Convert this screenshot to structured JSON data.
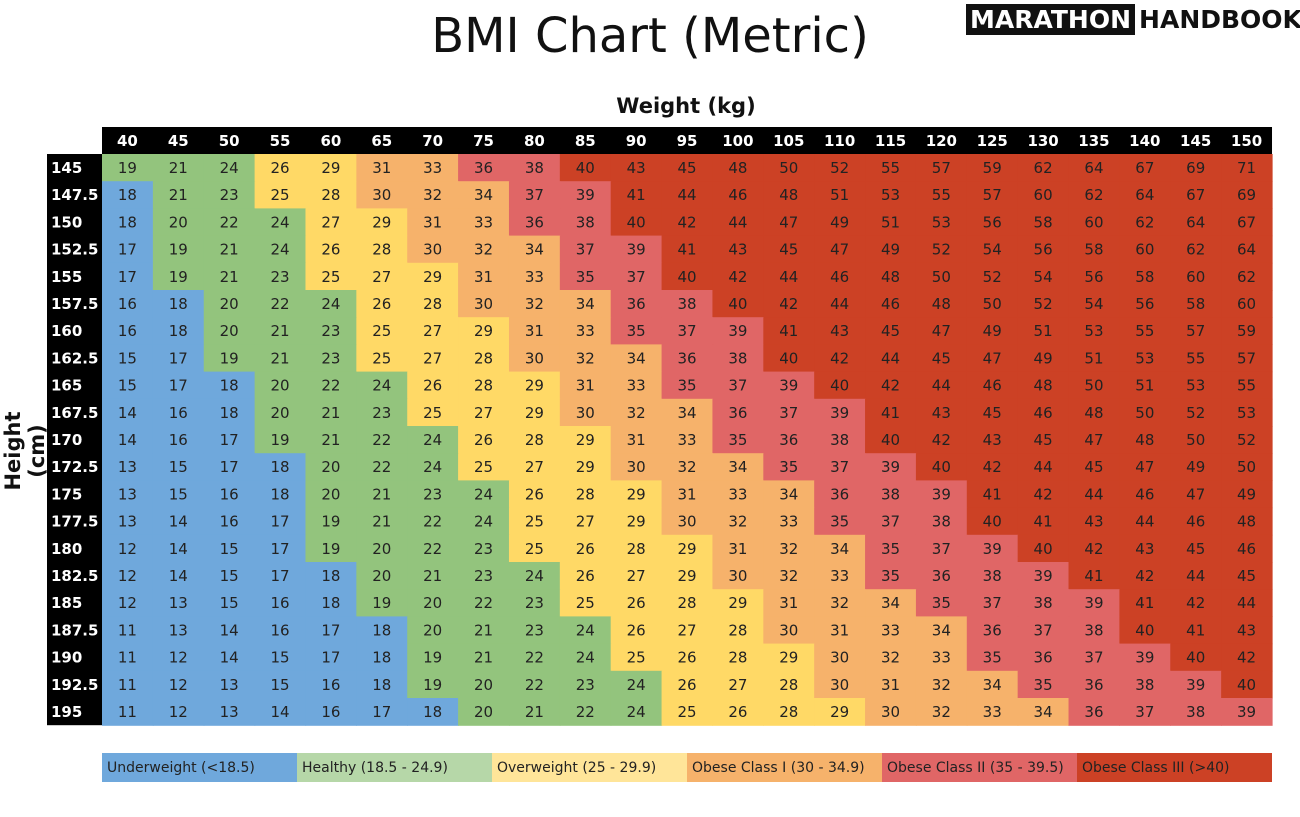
{
  "title": "BMI Chart (Metric)",
  "logo": {
    "part1": "MARATHON",
    "part2": "HANDBOOK"
  },
  "chart_data": {
    "type": "heatmap",
    "title": "BMI Chart (Metric)",
    "xlabel": "Weight (kg)",
    "ylabel": "Height (cm)",
    "weights": [
      "40",
      "45",
      "50",
      "55",
      "60",
      "65",
      "70",
      "75",
      "80",
      "85",
      "90",
      "95",
      "100",
      "105",
      "110",
      "115",
      "120",
      "125",
      "130",
      "135",
      "140",
      "145",
      "150"
    ],
    "heights": [
      "145",
      "147.5",
      "150",
      "152.5",
      "155",
      "157.5",
      "160",
      "162.5",
      "165",
      "167.5",
      "170",
      "172.5",
      "175",
      "177.5",
      "180",
      "182.5",
      "185",
      "187.5",
      "190",
      "192.5",
      "195"
    ],
    "values": [
      [
        19,
        21,
        24,
        26,
        29,
        31,
        33,
        36,
        38,
        40,
        43,
        45,
        48,
        50,
        52,
        55,
        57,
        59,
        62,
        64,
        67,
        69,
        71
      ],
      [
        18,
        21,
        23,
        25,
        28,
        30,
        32,
        34,
        37,
        39,
        41,
        44,
        46,
        48,
        51,
        53,
        55,
        57,
        60,
        62,
        64,
        67,
        69
      ],
      [
        18,
        20,
        22,
        24,
        27,
        29,
        31,
        33,
        36,
        38,
        40,
        42,
        44,
        47,
        49,
        51,
        53,
        56,
        58,
        60,
        62,
        64,
        67
      ],
      [
        17,
        19,
        21,
        24,
        26,
        28,
        30,
        32,
        34,
        37,
        39,
        41,
        43,
        45,
        47,
        49,
        52,
        54,
        56,
        58,
        60,
        62,
        64
      ],
      [
        17,
        19,
        21,
        23,
        25,
        27,
        29,
        31,
        33,
        35,
        37,
        40,
        42,
        44,
        46,
        48,
        50,
        52,
        54,
        56,
        58,
        60,
        62
      ],
      [
        16,
        18,
        20,
        22,
        24,
        26,
        28,
        30,
        32,
        34,
        36,
        38,
        40,
        42,
        44,
        46,
        48,
        50,
        52,
        54,
        56,
        58,
        60
      ],
      [
        16,
        18,
        20,
        21,
        23,
        25,
        27,
        29,
        31,
        33,
        35,
        37,
        39,
        41,
        43,
        45,
        47,
        49,
        51,
        53,
        55,
        57,
        59
      ],
      [
        15,
        17,
        19,
        21,
        23,
        25,
        27,
        28,
        30,
        32,
        34,
        36,
        38,
        40,
        42,
        44,
        45,
        47,
        49,
        51,
        53,
        55,
        57
      ],
      [
        15,
        17,
        18,
        20,
        22,
        24,
        26,
        28,
        29,
        31,
        33,
        35,
        37,
        39,
        40,
        42,
        44,
        46,
        48,
        50,
        51,
        53,
        55
      ],
      [
        14,
        16,
        18,
        20,
        21,
        23,
        25,
        27,
        29,
        30,
        32,
        34,
        36,
        37,
        39,
        41,
        43,
        45,
        46,
        48,
        50,
        52,
        53
      ],
      [
        14,
        16,
        17,
        19,
        21,
        22,
        24,
        26,
        28,
        29,
        31,
        33,
        35,
        36,
        38,
        40,
        42,
        43,
        45,
        47,
        48,
        50,
        52
      ],
      [
        13,
        15,
        17,
        18,
        20,
        22,
        24,
        25,
        27,
        29,
        30,
        32,
        34,
        35,
        37,
        39,
        40,
        42,
        44,
        45,
        47,
        49,
        50
      ],
      [
        13,
        15,
        16,
        18,
        20,
        21,
        23,
        24,
        26,
        28,
        29,
        31,
        33,
        34,
        36,
        38,
        39,
        41,
        42,
        44,
        46,
        47,
        49
      ],
      [
        13,
        14,
        16,
        17,
        19,
        21,
        22,
        24,
        25,
        27,
        29,
        30,
        32,
        33,
        35,
        37,
        38,
        40,
        41,
        43,
        44,
        46,
        48
      ],
      [
        12,
        14,
        15,
        17,
        19,
        20,
        22,
        23,
        25,
        26,
        28,
        29,
        31,
        32,
        34,
        35,
        37,
        39,
        40,
        42,
        43,
        45,
        46
      ],
      [
        12,
        14,
        15,
        17,
        18,
        20,
        21,
        23,
        24,
        26,
        27,
        29,
        30,
        32,
        33,
        35,
        36,
        38,
        39,
        41,
        42,
        44,
        45
      ],
      [
        12,
        13,
        15,
        16,
        18,
        19,
        20,
        22,
        23,
        25,
        26,
        28,
        29,
        31,
        32,
        34,
        35,
        37,
        38,
        39,
        41,
        42,
        44
      ],
      [
        11,
        13,
        14,
        16,
        17,
        18,
        20,
        21,
        23,
        24,
        26,
        27,
        28,
        30,
        31,
        33,
        34,
        36,
        37,
        38,
        40,
        41,
        43
      ],
      [
        11,
        12,
        14,
        15,
        17,
        18,
        19,
        21,
        22,
        24,
        25,
        26,
        28,
        29,
        30,
        32,
        33,
        35,
        36,
        37,
        39,
        40,
        42
      ],
      [
        11,
        12,
        13,
        15,
        16,
        18,
        19,
        20,
        22,
        23,
        24,
        26,
        27,
        28,
        30,
        31,
        32,
        34,
        35,
        36,
        38,
        39,
        40
      ],
      [
        11,
        12,
        13,
        14,
        16,
        17,
        18,
        20,
        21,
        22,
        24,
        25,
        26,
        28,
        29,
        30,
        32,
        33,
        34,
        36,
        37,
        38,
        39
      ]
    ],
    "categories": [
      {
        "label": "Underweight (<18.5)",
        "color": "#6fa8dc",
        "max": 18.5
      },
      {
        "label": "Healthy (18.5 - 24.9)",
        "color": "#93c47d",
        "max": 25
      },
      {
        "label": "Overweight (25 - 29.9)",
        "color": "#ffd966",
        "max": 30
      },
      {
        "label": "Obese Class I (30 - 34.9)",
        "color": "#f6b26b",
        "max": 35
      },
      {
        "label": "Obese Class II (35 - 39.5)",
        "color": "#e06666",
        "max": 40
      },
      {
        "label": "Obese Class III (>40)",
        "color": "#cc4125",
        "max": 999
      }
    ],
    "legend_colors_light": [
      "#6fa8dc",
      "#b6d7a8",
      "#ffe599",
      "#f6b26b",
      "#e06666",
      "#cc4125"
    ]
  }
}
